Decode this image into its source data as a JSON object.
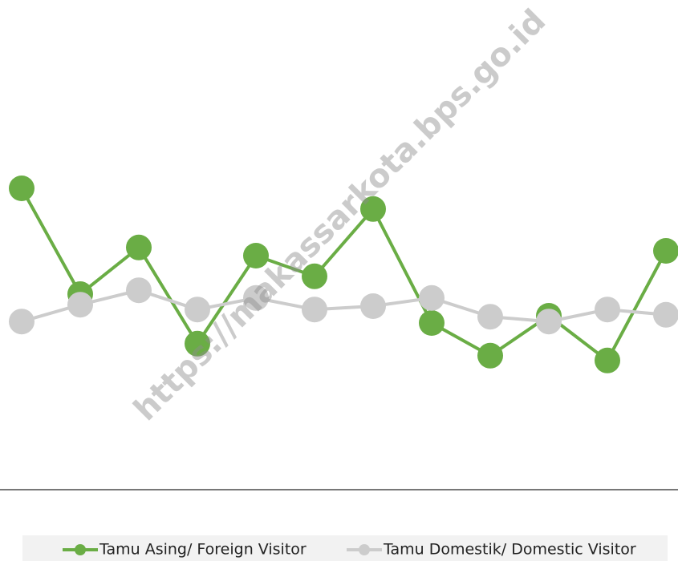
{
  "chart_data": {
    "type": "line",
    "annotation": "https://makassarkota.bps.go.id",
    "categories": [
      null,
      null,
      null,
      null,
      null,
      null,
      null,
      null,
      null,
      null,
      null,
      null
    ],
    "series": [
      {
        "name": "Tamu Asing/ Foreign Visitor",
        "color": "#6aad45",
        "values": [
          62.5,
          40.5,
          50.2,
          30.2,
          48.5,
          44.2,
          58.2,
          34.5,
          27.7,
          36,
          26.7,
          49.5
        ]
      },
      {
        "name": "Tamu Domestik/ Domestic Visitor",
        "color": "#cccccc",
        "values": [
          34.8,
          38.3,
          41.3,
          37.3,
          39.7,
          37.3,
          38,
          39.7,
          35.8,
          34.8,
          37.3,
          36.2
        ]
      }
    ],
    "ylim": [
      0,
      100
    ],
    "legend": "bottom"
  }
}
